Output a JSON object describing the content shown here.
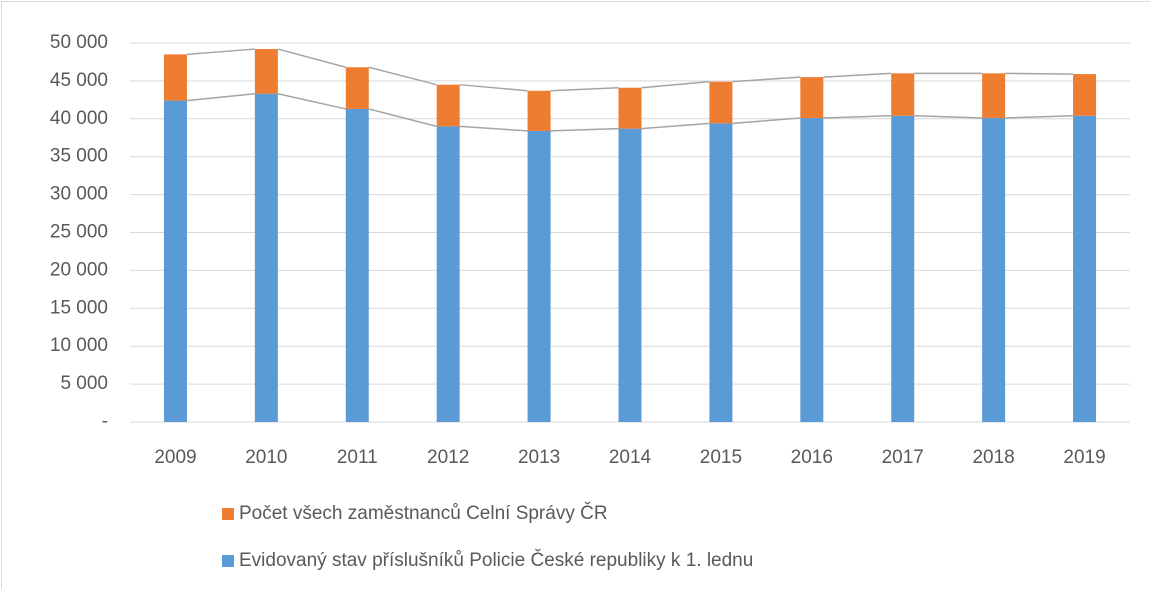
{
  "chart_data": {
    "type": "stacked_bar",
    "categories": [
      "2009",
      "2010",
      "2011",
      "2012",
      "2013",
      "2014",
      "2015",
      "2016",
      "2017",
      "2018",
      "2019"
    ],
    "series": [
      {
        "name": "Evidovaný stav příslušníků Policie České republiky k 1. lednu",
        "color": "#5b9bd5",
        "values": [
          42400,
          43300,
          41300,
          39000,
          38400,
          38700,
          39400,
          40100,
          40400,
          40100,
          40400
        ]
      },
      {
        "name": "Počet všech zaměstnanců Celní Správy ČR",
        "color": "#ed7d31",
        "values": [
          6100,
          5900,
          5500,
          5500,
          5300,
          5400,
          5500,
          5400,
          5600,
          5900,
          5500
        ]
      }
    ],
    "ylim": [
      0,
      50000
    ],
    "yticks": [
      {
        "value": 0,
        "label": "-"
      },
      {
        "value": 5000,
        "label": "5 000"
      },
      {
        "value": 10000,
        "label": "10 000"
      },
      {
        "value": 15000,
        "label": "15 000"
      },
      {
        "value": 20000,
        "label": "20 000"
      },
      {
        "value": 25000,
        "label": "25 000"
      },
      {
        "value": 30000,
        "label": "30 000"
      },
      {
        "value": 35000,
        "label": "35 000"
      },
      {
        "value": 40000,
        "label": "40 000"
      },
      {
        "value": 45000,
        "label": "45 000"
      },
      {
        "value": 50000,
        "label": "50 000"
      }
    ],
    "grid": true,
    "series_lines": true,
    "legend": "bottom"
  }
}
